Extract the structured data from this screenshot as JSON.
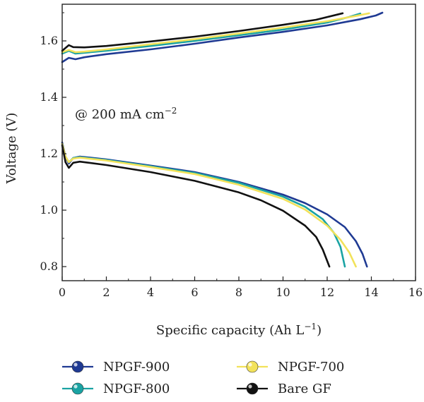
{
  "chart_data": {
    "type": "line",
    "title": "",
    "xlabel": "Specific capacity (Ah L",
    "xlabel_sup": "−1",
    "xlabel_close": ")",
    "ylabel": "Voltage (V)",
    "xlim": [
      0,
      16
    ],
    "ylim": [
      0.75,
      1.73
    ],
    "xticks": [
      0,
      2,
      4,
      6,
      8,
      10,
      12,
      14,
      16
    ],
    "xtick_labels": [
      "0",
      "2",
      "4",
      "6",
      "8",
      "10",
      "12",
      "14",
      "16"
    ],
    "yticks": [
      0.8,
      1.0,
      1.2,
      1.4,
      1.6
    ],
    "ytick_labels": [
      "0.8",
      "1.0",
      "1.2",
      "1.4",
      "1.6"
    ],
    "annotation": {
      "text": "@ 200 mA cm",
      "sup": "−2"
    },
    "grid": false,
    "legend_position": "bottom",
    "series": [
      {
        "name": "NPGF-900",
        "color": "#1f3a93",
        "charge": [
          [
            0,
            1.525
          ],
          [
            0.3,
            1.54
          ],
          [
            0.6,
            1.535
          ],
          [
            1,
            1.542
          ],
          [
            2,
            1.553
          ],
          [
            4,
            1.57
          ],
          [
            6,
            1.59
          ],
          [
            8,
            1.612
          ],
          [
            10,
            1.632
          ],
          [
            12,
            1.655
          ],
          [
            13.5,
            1.677
          ],
          [
            14.2,
            1.69
          ],
          [
            14.5,
            1.7
          ]
        ],
        "discharge": [
          [
            0,
            1.24
          ],
          [
            0.15,
            1.19
          ],
          [
            0.3,
            1.165
          ],
          [
            0.5,
            1.185
          ],
          [
            0.8,
            1.19
          ],
          [
            2,
            1.18
          ],
          [
            4,
            1.158
          ],
          [
            6,
            1.135
          ],
          [
            8,
            1.1
          ],
          [
            10,
            1.055
          ],
          [
            11,
            1.025
          ],
          [
            12,
            0.985
          ],
          [
            12.8,
            0.94
          ],
          [
            13.3,
            0.89
          ],
          [
            13.6,
            0.845
          ],
          [
            13.8,
            0.8
          ]
        ]
      },
      {
        "name": "NPGF-800",
        "color": "#1aa3a3",
        "charge": [
          [
            0,
            1.555
          ],
          [
            0.3,
            1.565
          ],
          [
            0.6,
            1.555
          ],
          [
            1,
            1.558
          ],
          [
            2,
            1.565
          ],
          [
            4,
            1.582
          ],
          [
            6,
            1.6
          ],
          [
            8,
            1.62
          ],
          [
            10,
            1.64
          ],
          [
            12,
            1.665
          ],
          [
            13,
            1.685
          ],
          [
            13.5,
            1.697
          ]
        ],
        "discharge": [
          [
            0,
            1.235
          ],
          [
            0.15,
            1.19
          ],
          [
            0.3,
            1.17
          ],
          [
            0.5,
            1.185
          ],
          [
            0.8,
            1.188
          ],
          [
            2,
            1.178
          ],
          [
            4,
            1.156
          ],
          [
            6,
            1.132
          ],
          [
            8,
            1.097
          ],
          [
            10,
            1.048
          ],
          [
            11,
            1.012
          ],
          [
            11.8,
            0.968
          ],
          [
            12.3,
            0.92
          ],
          [
            12.6,
            0.87
          ],
          [
            12.8,
            0.8
          ]
        ]
      },
      {
        "name": "NPGF-700",
        "color": "#f2e25a",
        "charge": [
          [
            0,
            1.56
          ],
          [
            0.3,
            1.568
          ],
          [
            0.6,
            1.56
          ],
          [
            1,
            1.562
          ],
          [
            2,
            1.57
          ],
          [
            4,
            1.588
          ],
          [
            6,
            1.606
          ],
          [
            8,
            1.626
          ],
          [
            10,
            1.647
          ],
          [
            12,
            1.67
          ],
          [
            13.2,
            1.687
          ],
          [
            13.9,
            1.698
          ]
        ],
        "discharge": [
          [
            0,
            1.235
          ],
          [
            0.15,
            1.19
          ],
          [
            0.3,
            1.17
          ],
          [
            0.5,
            1.183
          ],
          [
            0.8,
            1.186
          ],
          [
            2,
            1.176
          ],
          [
            4,
            1.153
          ],
          [
            6,
            1.128
          ],
          [
            8,
            1.09
          ],
          [
            10,
            1.04
          ],
          [
            11,
            1.002
          ],
          [
            12,
            0.945
          ],
          [
            12.6,
            0.895
          ],
          [
            13,
            0.85
          ],
          [
            13.3,
            0.8
          ]
        ]
      },
      {
        "name": "Bare GF",
        "color": "#111111",
        "charge": [
          [
            0,
            1.565
          ],
          [
            0.3,
            1.585
          ],
          [
            0.5,
            1.578
          ],
          [
            1,
            1.577
          ],
          [
            2,
            1.582
          ],
          [
            4,
            1.598
          ],
          [
            6,
            1.615
          ],
          [
            8,
            1.635
          ],
          [
            10,
            1.657
          ],
          [
            11.5,
            1.675
          ],
          [
            12.7,
            1.698
          ]
        ],
        "discharge": [
          [
            0,
            1.23
          ],
          [
            0.15,
            1.17
          ],
          [
            0.3,
            1.15
          ],
          [
            0.5,
            1.168
          ],
          [
            0.8,
            1.172
          ],
          [
            2,
            1.16
          ],
          [
            4,
            1.135
          ],
          [
            6,
            1.104
          ],
          [
            8,
            1.063
          ],
          [
            9,
            1.035
          ],
          [
            10,
            0.998
          ],
          [
            11,
            0.945
          ],
          [
            11.5,
            0.905
          ],
          [
            11.8,
            0.86
          ],
          [
            12.1,
            0.8
          ]
        ]
      }
    ]
  }
}
